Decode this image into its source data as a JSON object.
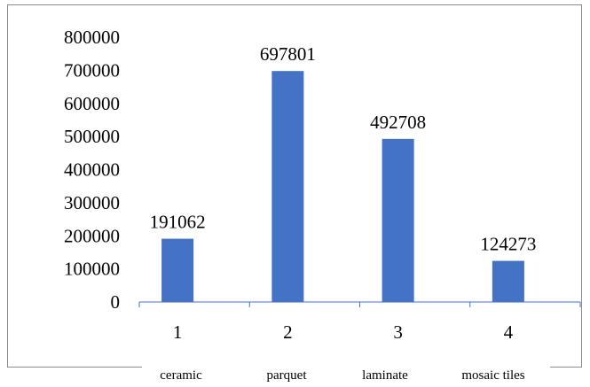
{
  "chart_data": {
    "type": "bar",
    "categories": [
      "1",
      "2",
      "3",
      "4"
    ],
    "category_names": [
      "ceramic",
      "parquet",
      "laminate",
      "mosaic tiles"
    ],
    "values": [
      191062,
      697801,
      492708,
      124273
    ],
    "ylim": [
      0,
      800000
    ],
    "yticks": [
      "0",
      "100000",
      "200000",
      "300000",
      "400000",
      "500000",
      "600000",
      "700000",
      "800000"
    ],
    "data_labels": [
      "191062",
      "697801",
      "492708",
      "124273"
    ],
    "bar_color": "#4472c4",
    "grid": false,
    "legend": "none"
  }
}
